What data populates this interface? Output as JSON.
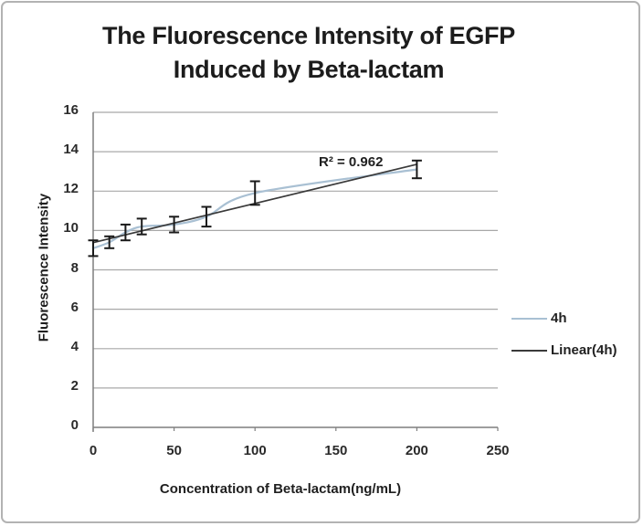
{
  "chart_data": {
    "type": "line",
    "title": "The Fluorescence Intensity of EGFP Induced by Beta-lactam",
    "title_lines": [
      "The Fluorescence Intensity of EGFP",
      "Induced by Beta-lactam"
    ],
    "xlabel": "Concentration of Beta-lactam(ng/mL)",
    "ylabel": "Fluorescence Intensity",
    "xlim": [
      0,
      250
    ],
    "ylim": [
      0,
      16
    ],
    "x_ticks": [
      0,
      50,
      100,
      150,
      200,
      250
    ],
    "y_ticks": [
      0,
      2,
      4,
      6,
      8,
      10,
      12,
      14,
      16
    ],
    "grid": "horizontal-only",
    "legend_position": "right",
    "annotation": "R² = 0.962",
    "series": [
      {
        "name": "4h",
        "style": "smooth-line",
        "color": "#a9c0d3",
        "x": [
          0,
          10,
          20,
          30,
          50,
          70,
          100,
          200
        ],
        "y": [
          9.1,
          9.4,
          9.9,
          10.2,
          10.3,
          10.7,
          11.9,
          13.1
        ],
        "y_err": [
          0.4,
          0.3,
          0.4,
          0.4,
          0.4,
          0.5,
          0.6,
          0.45
        ]
      },
      {
        "name": "Linear(4h)",
        "style": "straight-trendline",
        "color": "#3a3a3a",
        "x": [
          0,
          200
        ],
        "y": [
          9.38,
          13.36
        ]
      }
    ],
    "colors": {
      "grid": "#a8a8a8",
      "axis": "#7f7f7f",
      "error_bar": "#1a1a1a",
      "text": "#1f1f1f",
      "frame_border": "#b3b3b3",
      "background": "#ffffff"
    }
  }
}
